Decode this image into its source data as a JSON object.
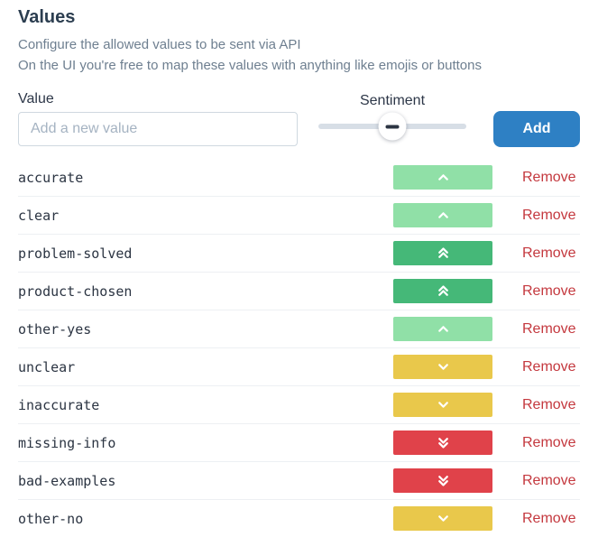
{
  "page": {
    "title": "Values",
    "subtitle1": "Configure the allowed values to be sent via API",
    "subtitle2": "On the UI you're free to map these values with anything like emojis or buttons"
  },
  "form": {
    "value_label": "Value",
    "input_value": "",
    "input_placeholder": "Add a new value",
    "sentiment_label": "Sentiment",
    "slider": {
      "thumb_position_percent": 50,
      "state": "neutral"
    },
    "add_button_label": "Add"
  },
  "colors": {
    "very_positive": "#45b878",
    "positive": "#90e0a7",
    "negative": "#e9c84b",
    "very_negative": "#e0424a",
    "add_button_blue": "#2e80c4",
    "remove_red": "#c4383e"
  },
  "remove_label": "Remove",
  "rows": [
    {
      "value": "accurate",
      "sentiment": 1
    },
    {
      "value": "clear",
      "sentiment": 1
    },
    {
      "value": "problem-solved",
      "sentiment": 2
    },
    {
      "value": "product-chosen",
      "sentiment": 2
    },
    {
      "value": "other-yes",
      "sentiment": 1
    },
    {
      "value": "unclear",
      "sentiment": -1
    },
    {
      "value": "inaccurate",
      "sentiment": -1
    },
    {
      "value": "missing-info",
      "sentiment": -2
    },
    {
      "value": "bad-examples",
      "sentiment": -2
    },
    {
      "value": "other-no",
      "sentiment": -1
    }
  ]
}
